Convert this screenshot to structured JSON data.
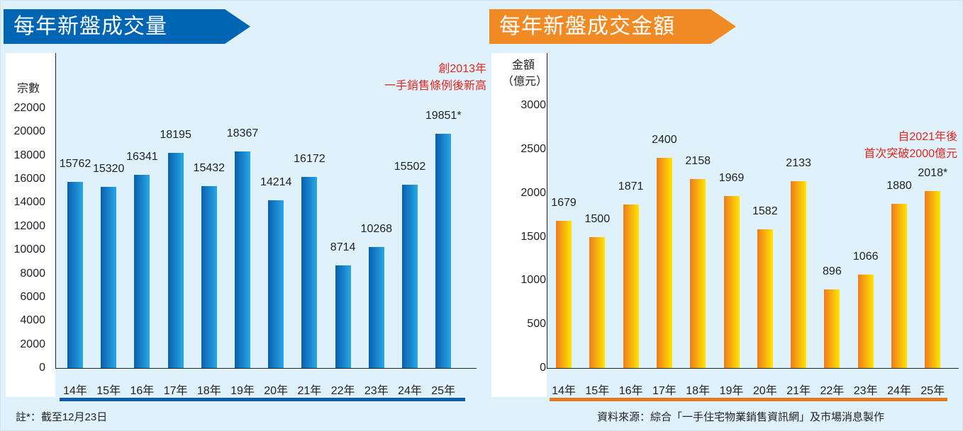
{
  "chart_data": [
    {
      "type": "bar",
      "title": "每年新盤成交量",
      "ylabel": "宗數",
      "ylim": [
        0,
        22000
      ],
      "yticks": [
        0,
        2000,
        4000,
        6000,
        8000,
        10000,
        12000,
        14000,
        16000,
        18000,
        20000,
        22000
      ],
      "categories": [
        "14年",
        "15年",
        "16年",
        "17年",
        "18年",
        "19年",
        "20年",
        "21年",
        "22年",
        "23年",
        "24年",
        "25年"
      ],
      "values": [
        15762,
        15320,
        16341,
        18195,
        15432,
        18367,
        14214,
        16172,
        8714,
        10268,
        15502,
        19851
      ],
      "labels": [
        "15762",
        "15320",
        "16341",
        "18195",
        "15432",
        "18367",
        "14214",
        "16172",
        "8714",
        "10268",
        "15502",
        "19851*"
      ],
      "annotation": [
        "創2013年",
        "一手銷售條例後新高"
      ],
      "color": "#0a6ab8"
    },
    {
      "type": "bar",
      "title": "每年新盤成交金額",
      "ylabel": [
        "金額",
        "（億元）"
      ],
      "ylim": [
        0,
        3000
      ],
      "yticks": [
        0,
        500,
        1000,
        1500,
        2000,
        2500,
        3000
      ],
      "categories": [
        "14年",
        "15年",
        "16年",
        "17年",
        "18年",
        "19年",
        "20年",
        "21年",
        "22年",
        "23年",
        "24年",
        "25年"
      ],
      "values": [
        1679,
        1500,
        1871,
        2400,
        2158,
        1969,
        1582,
        2133,
        896,
        1066,
        1880,
        2018
      ],
      "labels": [
        "1679",
        "1500",
        "1871",
        "2400",
        "2158",
        "1969",
        "1582",
        "2133",
        "896",
        "1066",
        "1880",
        "2018*"
      ],
      "annotation": [
        "自2021年後",
        "首次突破2000億元"
      ],
      "color": "#f5a21c"
    }
  ],
  "footer": {
    "note": "註*：截至12月23日",
    "source": "資料來源：綜合「一手住宅物業銷售資訊網」及市場消息製作"
  },
  "colors": {
    "blue_banner": "#0066b3",
    "orange_banner": "#f08a24",
    "annotation": "#e3261d"
  }
}
